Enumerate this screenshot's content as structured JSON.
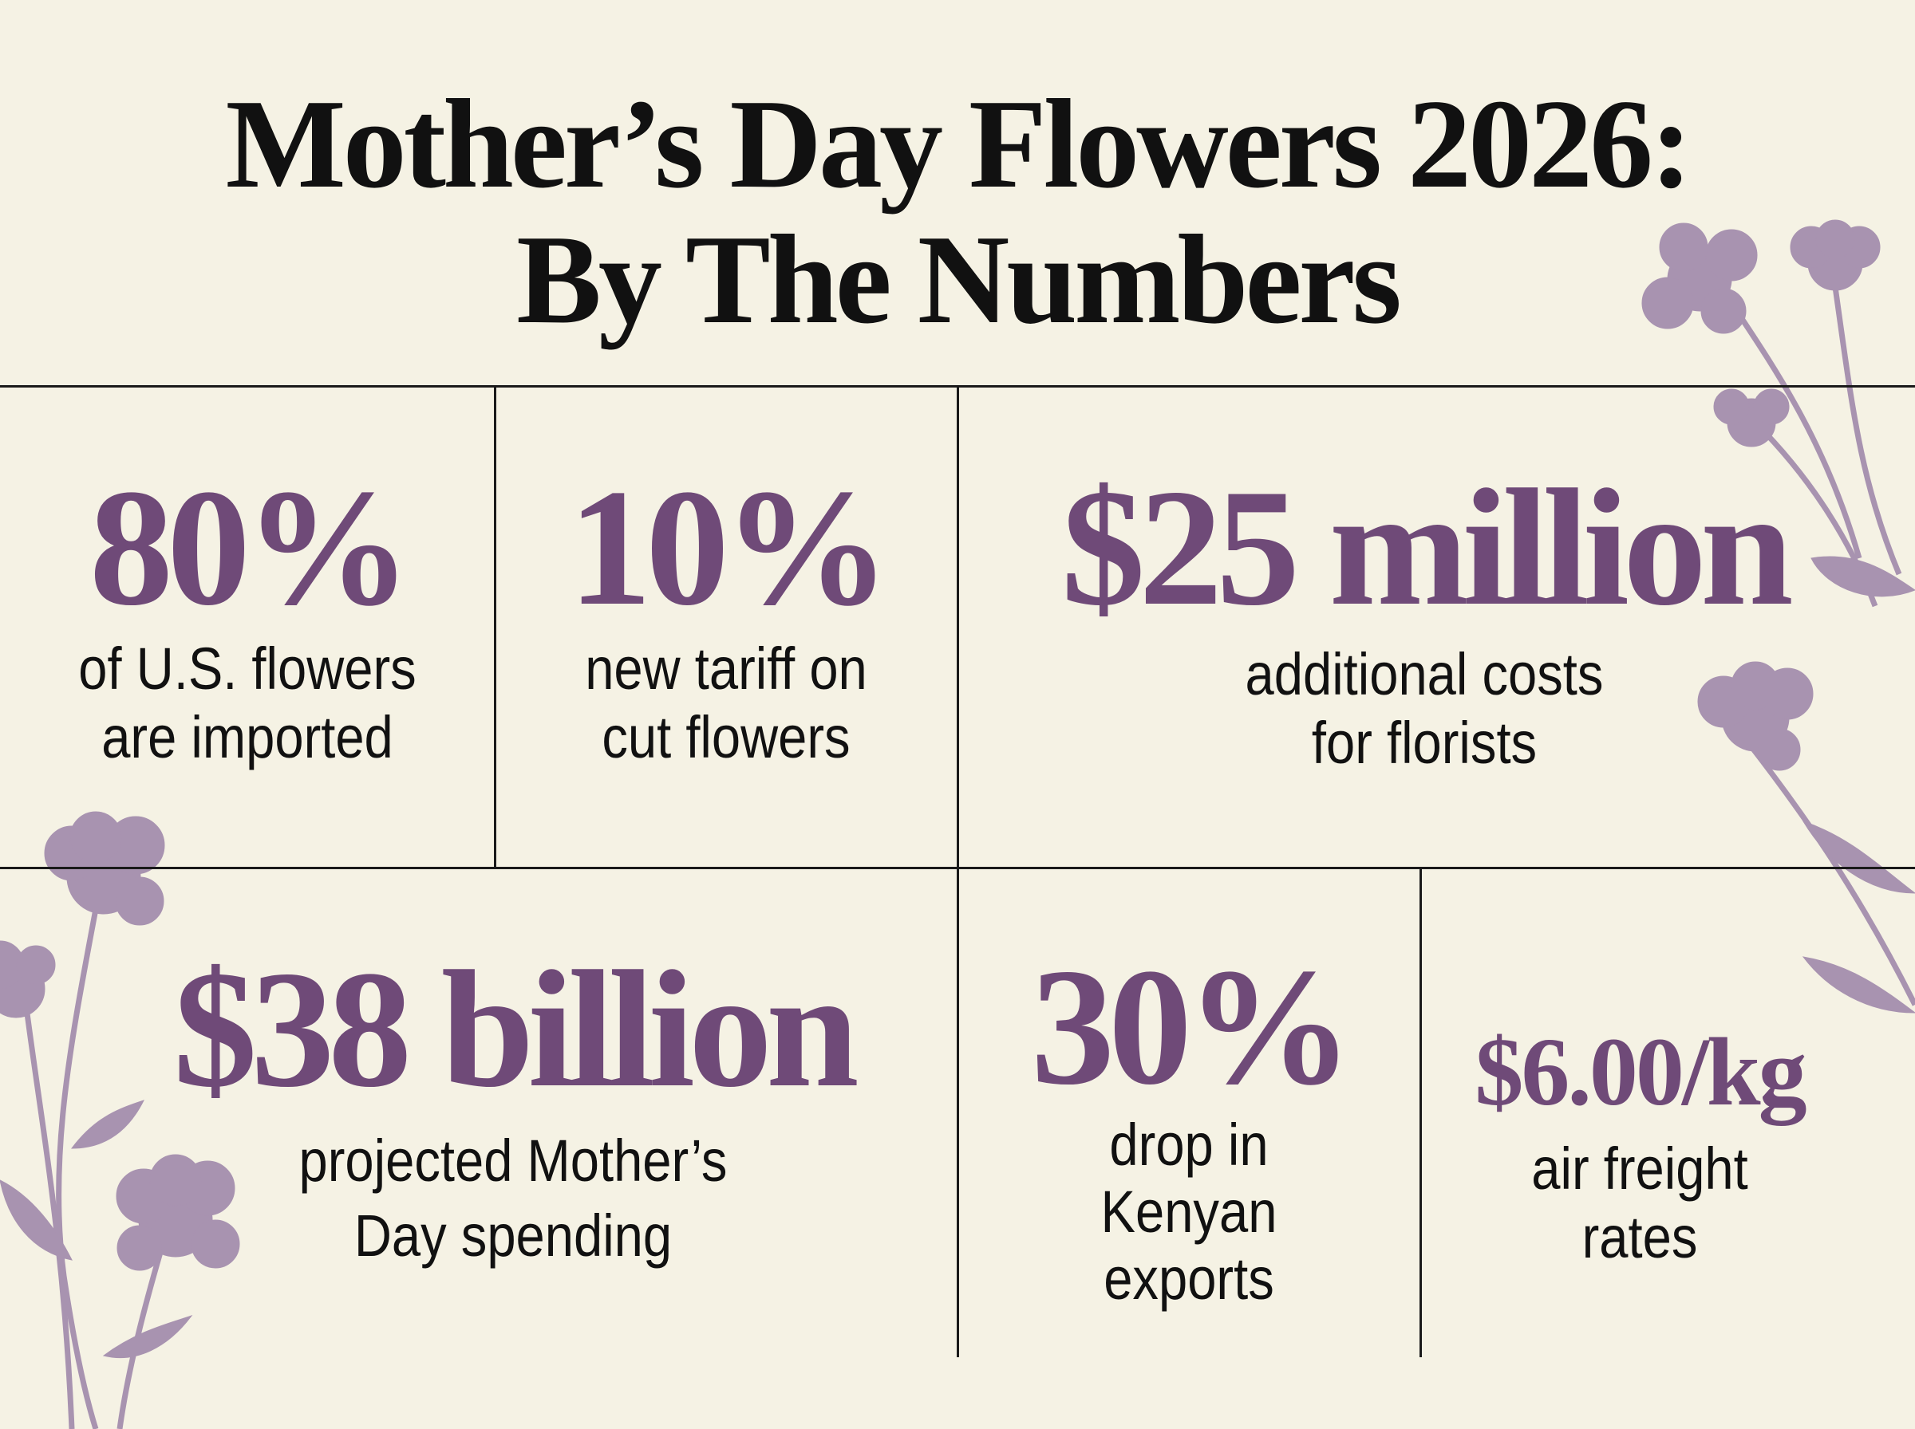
{
  "title": {
    "line1": "Mother’s Day Flowers 2026:",
    "line2": "By The Numbers"
  },
  "colors": {
    "background": "#f5f2e4",
    "accent": "#6f4a78",
    "flower": "#a893b0",
    "text": "#111111"
  },
  "stats": [
    {
      "value": "80%",
      "label": [
        "of U.S. flowers",
        "are imported"
      ]
    },
    {
      "value": "10%",
      "label": [
        "new tariff on",
        "cut flowers"
      ]
    },
    {
      "value": "$25 million",
      "label": [
        "additional costs",
        "for florists"
      ]
    },
    {
      "value": "$38 billion",
      "label": [
        "projected Mother’s",
        "Day spending"
      ]
    },
    {
      "value": "30%",
      "label": [
        "drop in",
        "Kenyan",
        "exports"
      ]
    },
    {
      "value": "$6.00/kg",
      "label": [
        "air freight",
        "rates"
      ]
    }
  ],
  "decorations": {
    "icon": "flower-icon"
  }
}
